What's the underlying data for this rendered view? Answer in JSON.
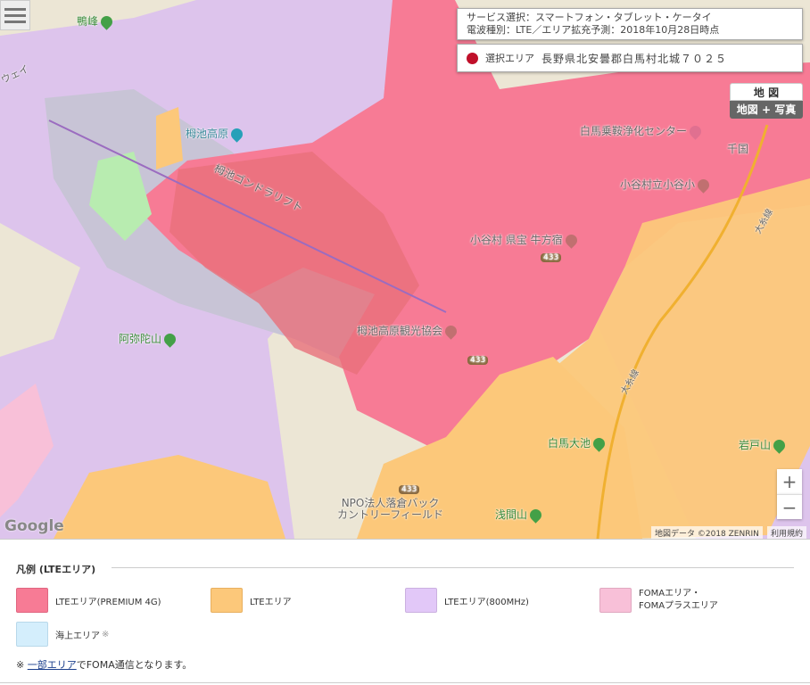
{
  "map": {
    "labels": {
      "kamominemine": "鴨峰",
      "tsugaike_kogen": "栂池高原",
      "gondola": "栂池ゴンドラリフト",
      "ropeway": "ウェイ",
      "hakuba_plant": "白馬乗鞍浄化センター",
      "chikuni": "千国",
      "otari_school": "小谷村立小谷小",
      "inn": "小谷村 県宝 牛方宿",
      "route433a": "433",
      "route433b": "433",
      "route433c": "433",
      "amidasan": "阿弥陀山",
      "tourism": "栂池高原観光協会",
      "oito": "大糸線",
      "oito2": "大糸線",
      "hakuba_oike": "白馬大池",
      "iwatoyama": "岩戸山",
      "npo": "NPO法人落倉バック\nカントリーフィールド",
      "sengenyama": "浅間山"
    },
    "google_logo": "Google",
    "copyright": "地図データ ©2018 ZENRIN",
    "terms": "利用規約",
    "zoom_in": "+",
    "zoom_out": "−",
    "map_type": {
      "map": "地 図",
      "hybrid": "地図 + 写真"
    },
    "info": {
      "service": "サービス選択：スマートフォン・タブレット・ケータイ",
      "radio": "電波種別：LTE／エリア拡充予測：2018年10月28日時点",
      "area_label": "選択エリア",
      "area_value": "長野県北安曇郡白馬村北城７０２５"
    }
  },
  "legend": {
    "title": "凡例 (LTEエリア)",
    "items": [
      {
        "label": "LTEエリア(PREMIUM 4G)",
        "color": "#f77b95"
      },
      {
        "label": "LTEエリア",
        "color": "#fcc87a"
      },
      {
        "label": "LTEエリア(800MHz)",
        "color": "#e2c8f8"
      },
      {
        "label": "FOMAエリア・\nFOMAプラスエリア",
        "color": "#f8c0d8"
      },
      {
        "label": "海上エリア",
        "mark": "※",
        "color": "#d4eefc"
      }
    ],
    "note_prefix": "※ ",
    "note_link": "一部エリア",
    "note_suffix": "でFOMA通信となります。"
  }
}
